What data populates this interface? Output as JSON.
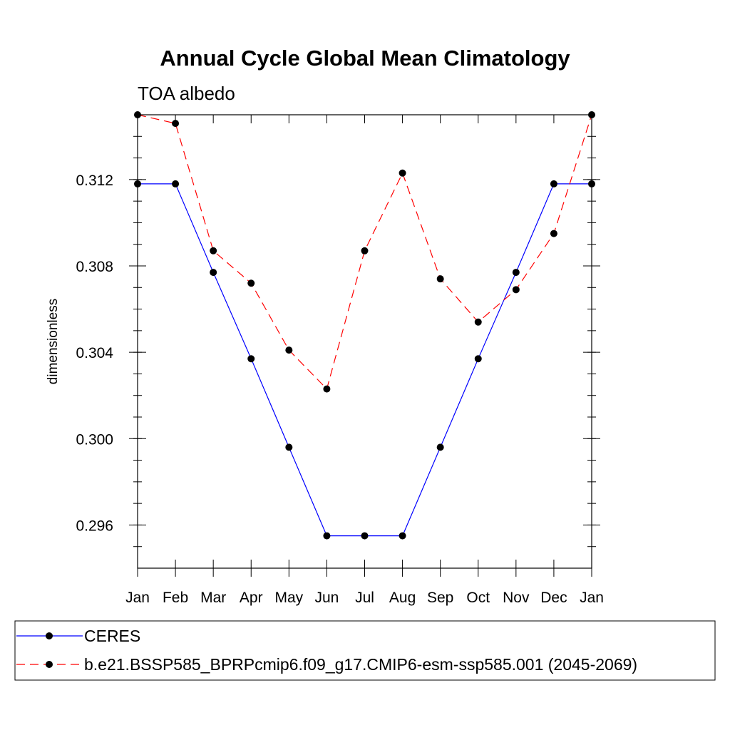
{
  "chart_data": {
    "type": "line",
    "title": "Annual Cycle Global Mean Climatology",
    "subtitle": "TOA albedo",
    "xlabel": "",
    "ylabel": "dimensionless",
    "categories": [
      "Jan",
      "Feb",
      "Mar",
      "Apr",
      "May",
      "Jun",
      "Jul",
      "Aug",
      "Sep",
      "Oct",
      "Nov",
      "Dec",
      "Jan"
    ],
    "ylim": [
      0.294,
      0.315
    ],
    "yticks": [
      0.296,
      0.3,
      0.304,
      0.308,
      0.312
    ],
    "ytick_labels": [
      "0.296",
      "0.300",
      "0.304",
      "0.308",
      "0.312"
    ],
    "ytick_minor_step": 0.001,
    "series": [
      {
        "name": "CERES",
        "color": "#0000ff",
        "dash": "solid",
        "marker": "filled-circle",
        "values": [
          0.3118,
          0.3118,
          0.3077,
          0.3037,
          0.2996,
          0.2955,
          0.2955,
          0.2955,
          0.2996,
          0.3037,
          0.3077,
          0.3118,
          0.3118
        ]
      },
      {
        "name": "b.e21.BSSP585_BPRPcmip6.f09_g17.CMIP6-esm-ssp585.001 (2045-2069)",
        "color": "#ff0000",
        "dash": "dashed",
        "marker": "filled-circle",
        "values": [
          0.315,
          0.3146,
          0.3087,
          0.3072,
          0.3041,
          0.3023,
          0.3087,
          0.3123,
          0.3074,
          0.3054,
          0.3069,
          0.3095,
          0.315
        ]
      }
    ],
    "legend_position": "bottom"
  }
}
